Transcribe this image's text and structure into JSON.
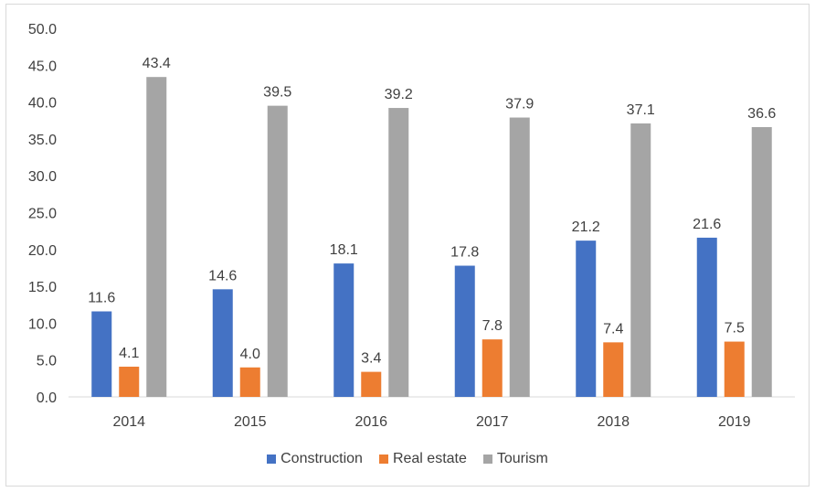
{
  "chart_data": {
    "type": "bar",
    "categories": [
      "2014",
      "2015",
      "2016",
      "2017",
      "2018",
      "2019"
    ],
    "series": [
      {
        "name": "Construction",
        "color": "#4472C4",
        "values": [
          11.6,
          14.6,
          18.1,
          17.8,
          21.2,
          21.6
        ]
      },
      {
        "name": "Real estate",
        "color": "#ED7D31",
        "values": [
          4.1,
          4.0,
          3.4,
          7.8,
          7.4,
          7.5
        ]
      },
      {
        "name": "Tourism",
        "color": "#A5A5A5",
        "values": [
          43.4,
          39.5,
          39.2,
          37.9,
          37.1,
          36.6
        ]
      }
    ],
    "data_labels": [
      [
        "11.6",
        "14.6",
        "18.1",
        "17.8",
        "21.2",
        "21.6"
      ],
      [
        "4.1",
        "4.0",
        "3.4",
        "7.8",
        "7.4",
        "7.5"
      ],
      [
        "43.4",
        "39.5",
        "39.2",
        "37.9",
        "37.1",
        "36.6"
      ]
    ],
    "yticks": [
      "0.0",
      "5.0",
      "10.0",
      "15.0",
      "20.0",
      "25.0",
      "30.0",
      "35.0",
      "40.0",
      "45.0",
      "50.0"
    ],
    "ylim": [
      0,
      50
    ],
    "grid": false,
    "legend_position": "bottom",
    "title": "",
    "xlabel": "",
    "ylabel": ""
  }
}
